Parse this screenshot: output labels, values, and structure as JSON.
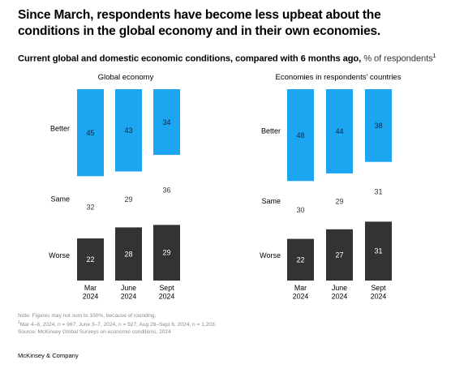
{
  "title": "Since March, respondents have become less upbeat about the conditions in the global economy and in their own economies.",
  "subtitle": {
    "bold": "Current global and domestic economic conditions, compared with 6 months ago,",
    "unit": "% of respondents",
    "footnote_mark": "1"
  },
  "chart_data": [
    {
      "type": "bar",
      "stacked": true,
      "title": "Global economy",
      "categories": [
        "Mar\n2024",
        "June\n2024",
        "Sept\n2024"
      ],
      "row_labels": [
        "Better",
        "Same",
        "Worse"
      ],
      "series": [
        {
          "name": "Worse",
          "values": [
            22,
            28,
            29
          ],
          "color": "#333333",
          "label_color": "#ffffff"
        },
        {
          "name": "Same",
          "values": [
            32,
            29,
            36
          ],
          "color": "#ffffff",
          "label_color": "#333333"
        },
        {
          "name": "Better",
          "values": [
            45,
            43,
            34
          ],
          "color": "#1ca6f2",
          "label_color": "#0a2540"
        }
      ]
    },
    {
      "type": "bar",
      "stacked": true,
      "title": "Economies in respondents' countries",
      "categories": [
        "Mar\n2024",
        "June\n2024",
        "Sept\n2024"
      ],
      "row_labels": [
        "Better",
        "Same",
        "Worse"
      ],
      "series": [
        {
          "name": "Worse",
          "values": [
            22,
            27,
            31
          ],
          "color": "#333333",
          "label_color": "#ffffff"
        },
        {
          "name": "Same",
          "values": [
            30,
            29,
            31
          ],
          "color": "#ffffff",
          "label_color": "#333333"
        },
        {
          "name": "Better",
          "values": [
            48,
            44,
            38
          ],
          "color": "#1ca6f2",
          "label_color": "#0a2540"
        }
      ]
    }
  ],
  "notes": {
    "line1": "Note: Figures may not sum to 100%, because of rounding.",
    "line2_mark": "1",
    "line2": "Mar 4–8, 2024, n = 967; June 3–7, 2024, n = 927; Aug 28–Sept 6, 2024, n = 1,203.",
    "line3": "Source: McKinsey Global Surveys on economic conditions, 2024"
  },
  "footer": "McKinsey & Company"
}
